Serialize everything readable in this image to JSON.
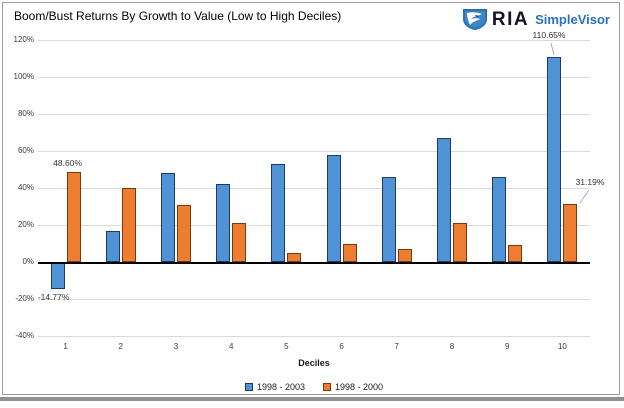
{
  "header": {
    "title": "Boom/Bust Returns By Growth to Value (Low to High Deciles)",
    "logo": {
      "brand": "RIA",
      "product": "SimpleVisor",
      "brand_color": "#121528",
      "product_color": "#2b72c0",
      "icon": "ria-falcon-shield"
    }
  },
  "chart_data": {
    "type": "bar",
    "title": "Boom/Bust Returns By Growth to Value (Low to High Deciles)",
    "xlabel": "Deciles",
    "ylabel": "",
    "categories": [
      "1",
      "2",
      "3",
      "4",
      "5",
      "6",
      "7",
      "8",
      "9",
      "10"
    ],
    "series": [
      {
        "name": "1998 - 2003",
        "color": "#4f93d6",
        "border_color": "#1f3b63",
        "values": [
          -14.77,
          17,
          48,
          42,
          53,
          58,
          46,
          67,
          46,
          110.65
        ]
      },
      {
        "name": "1998 - 2000",
        "color": "#ed7d31",
        "border_color": "#7a3a10",
        "values": [
          48.6,
          40,
          31,
          21,
          5,
          10,
          7,
          21,
          9,
          31.19
        ]
      }
    ],
    "ylim": [
      -40,
      120
    ],
    "ytick_step": 20,
    "ytick_labels": [
      "120%",
      "100%",
      "80%",
      "60%",
      "40%",
      "20%",
      "0%",
      "-20%",
      "-40%"
    ],
    "grid": true,
    "legend_position": "bottom",
    "data_labels": [
      {
        "series": 0,
        "category": 0,
        "text": "-14.77%",
        "placement": "below"
      },
      {
        "series": 1,
        "category": 0,
        "text": "48.60%",
        "placement": "above"
      },
      {
        "series": 0,
        "category": 9,
        "text": "110.65%",
        "placement": "callout"
      },
      {
        "series": 1,
        "category": 9,
        "text": "31.19%",
        "placement": "callout"
      }
    ],
    "colors": {
      "grid": "#d9d9d9",
      "zero_line": "#000000",
      "label_text": "#333333",
      "leader_line": "#aeaeae"
    }
  }
}
